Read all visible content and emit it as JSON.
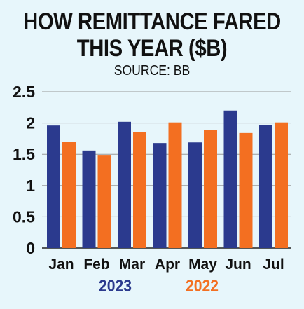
{
  "header": {
    "title_line1": "HOW REMITTANCE FARED",
    "title_line2": "THIS YEAR ($B)",
    "source": "SOURCE: BB"
  },
  "colors": {
    "background": "#e7f6fb",
    "series_2023": "#2b3a8e",
    "series_2022": "#f36f21"
  },
  "chart_data": {
    "type": "bar",
    "title": "HOW REMITTANCE FARED THIS YEAR ($B)",
    "subtitle": "SOURCE: BB",
    "categories": [
      "Jan",
      "Feb",
      "Mar",
      "Apr",
      "May",
      "Jun",
      "Jul"
    ],
    "series": [
      {
        "name": "2023",
        "color": "#2b3a8e",
        "values": [
          1.96,
          1.56,
          2.02,
          1.68,
          1.69,
          2.2,
          1.97
        ]
      },
      {
        "name": "2022",
        "color": "#f36f21",
        "values": [
          1.7,
          1.49,
          1.86,
          2.01,
          1.89,
          1.84,
          2.01
        ]
      }
    ],
    "yticks": [
      "0",
      "0.5",
      "1",
      "1.5",
      "2",
      "2.5"
    ],
    "ylim": [
      0,
      2.5
    ],
    "grid": true,
    "legend": "bottom"
  }
}
